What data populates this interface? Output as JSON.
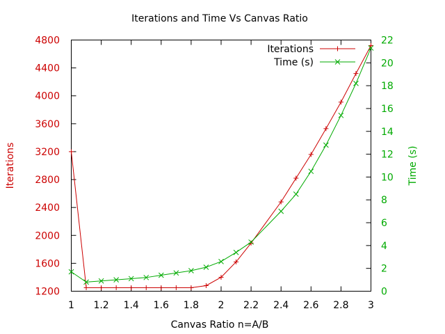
{
  "chart_data": {
    "type": "line",
    "title": "Iterations and Time Vs Canvas Ratio",
    "xlabel": "Canvas Ratio n=A/B",
    "ylabel_left": "Iterations",
    "ylabel_right": "Time (s)",
    "xlim": [
      1,
      3
    ],
    "ylim_left": [
      1200,
      4800
    ],
    "ylim_right": [
      0,
      22
    ],
    "x_ticks": [
      "1",
      "1.2",
      "1.4",
      "1.6",
      "1.8",
      "2",
      "2.2",
      "2.4",
      "2.6",
      "2.8",
      "3"
    ],
    "y_left_ticks": [
      "1200",
      "1600",
      "2000",
      "2400",
      "2800",
      "3200",
      "3600",
      "4000",
      "4400",
      "4800"
    ],
    "y_right_ticks": [
      "0",
      "2",
      "4",
      "6",
      "8",
      "10",
      "12",
      "14",
      "16",
      "18",
      "20",
      "22"
    ],
    "legend_position": "top-right",
    "grid": false,
    "series": [
      {
        "name": "Iterations",
        "axis": "left",
        "color": "#cc0000",
        "marker": "plus",
        "points": [
          [
            1.0,
            3200
          ],
          [
            1.1,
            1250
          ],
          [
            1.2,
            1250
          ],
          [
            1.3,
            1250
          ],
          [
            1.4,
            1250
          ],
          [
            1.5,
            1250
          ],
          [
            1.6,
            1250
          ],
          [
            1.7,
            1250
          ],
          [
            1.8,
            1250
          ],
          [
            1.9,
            1280
          ],
          [
            2.0,
            1400
          ],
          [
            2.1,
            1620
          ],
          [
            2.2,
            1890
          ],
          [
            2.4,
            2480
          ],
          [
            2.5,
            2820
          ],
          [
            2.6,
            3160
          ],
          [
            2.7,
            3530
          ],
          [
            2.8,
            3910
          ],
          [
            2.9,
            4320
          ],
          [
            3.0,
            4720
          ]
        ]
      },
      {
        "name": "Time (s)",
        "axis": "right",
        "color": "#00aa00",
        "marker": "cross",
        "points": [
          [
            1.0,
            1.7
          ],
          [
            1.1,
            0.8
          ],
          [
            1.2,
            0.9
          ],
          [
            1.3,
            1.0
          ],
          [
            1.4,
            1.1
          ],
          [
            1.5,
            1.2
          ],
          [
            1.6,
            1.4
          ],
          [
            1.7,
            1.6
          ],
          [
            1.8,
            1.8
          ],
          [
            1.9,
            2.1
          ],
          [
            2.0,
            2.6
          ],
          [
            2.1,
            3.4
          ],
          [
            2.2,
            4.3
          ],
          [
            2.4,
            7.0
          ],
          [
            2.5,
            8.5
          ],
          [
            2.6,
            10.5
          ],
          [
            2.7,
            12.8
          ],
          [
            2.8,
            15.4
          ],
          [
            2.9,
            18.2
          ],
          [
            3.0,
            21.3
          ]
        ]
      }
    ]
  }
}
